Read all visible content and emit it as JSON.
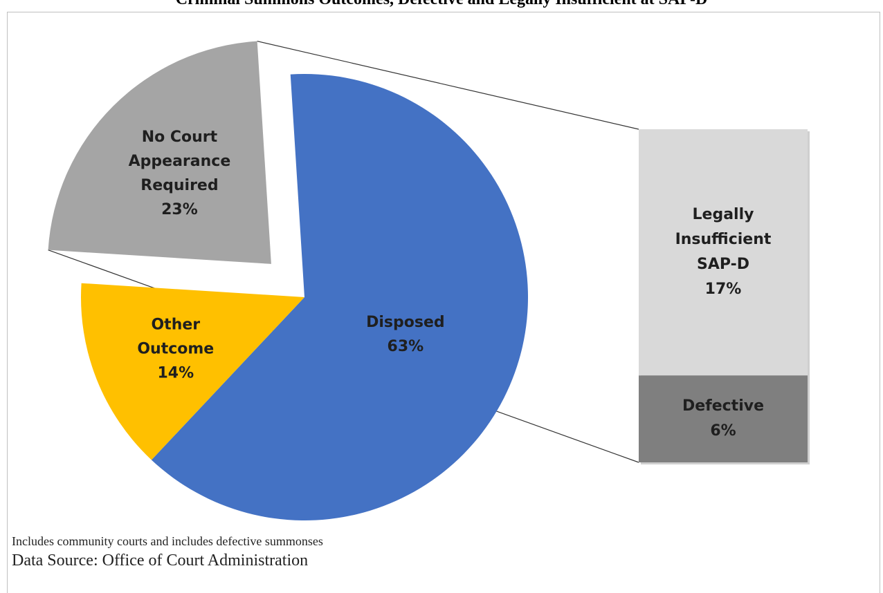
{
  "title": "Criminal Summons Outcomes, Defective and Legally Insufficient at SAP-D",
  "notes": {
    "line1": "Includes community courts and includes defective summonses",
    "line2": "Data Source: Office of Court Administration"
  },
  "chart_data": {
    "type": "pie",
    "title": "Criminal Summons Outcomes, Defective and Legally Insufficient at SAP-D",
    "slices": [
      {
        "label_lines": [
          "Disposed",
          "63%"
        ],
        "label": "Disposed",
        "value": 63,
        "color": "#4472c4"
      },
      {
        "label_lines": [
          "Other",
          "Outcome",
          "14%"
        ],
        "label": "Other Outcome",
        "value": 14,
        "color": "#ffc000"
      },
      {
        "label_lines": [
          "No Court",
          "Appearance",
          "Required",
          "23%"
        ],
        "label": "No Court Appearance Required",
        "value": 23,
        "color": "#a5a5a5",
        "exploded": true
      }
    ],
    "breakdown": {
      "type": "stacked-bar",
      "of": "No Court Appearance Required",
      "segments": [
        {
          "label_lines": [
            "Legally",
            "Insufficient",
            "SAP-D",
            "17%"
          ],
          "label": "Legally Insufficient SAP-D",
          "value": 17,
          "color": "#d9d9d9"
        },
        {
          "label_lines": [
            "Defective",
            "6%"
          ],
          "label": "Defective",
          "value": 6,
          "color": "#7f7f7f"
        }
      ]
    }
  }
}
